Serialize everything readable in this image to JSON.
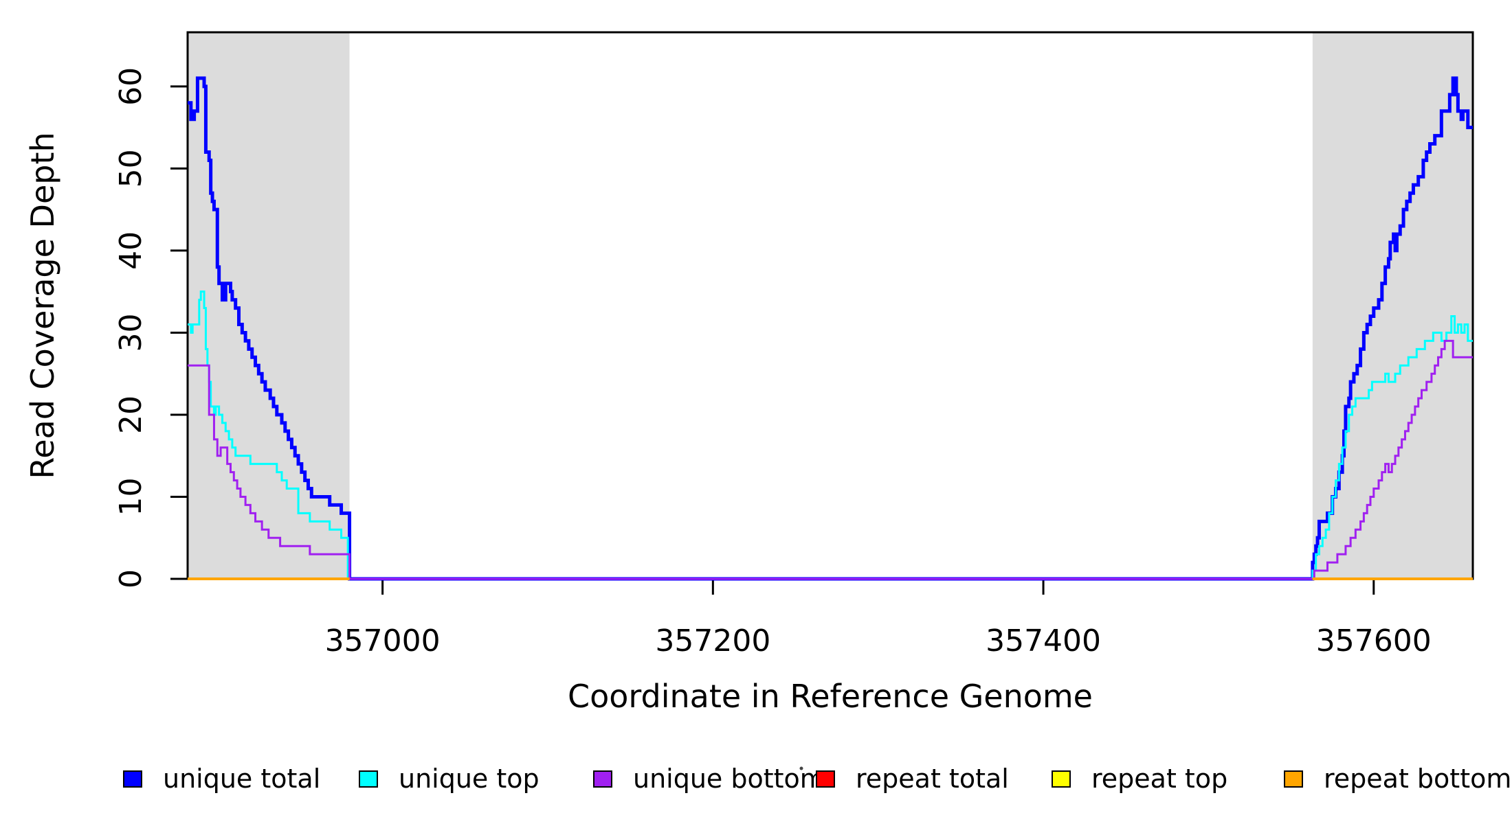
{
  "chart_data": {
    "type": "line",
    "subtype": "step-after-coverage-plot",
    "title": "",
    "xlabel": "Coordinate in Reference Genome",
    "ylabel": "Read Coverage Depth",
    "xlim": [
      356882,
      357660
    ],
    "ylim": [
      0,
      66.6
    ],
    "x_ticks": [
      357000,
      357200,
      357400,
      357600
    ],
    "y_ticks": [
      0,
      10,
      20,
      30,
      40,
      50,
      60
    ],
    "grid": false,
    "legend_position": "bottom",
    "plot_background": "#ffffff",
    "repeat_region_color": "#dcdcdc",
    "repeat_regions": [
      [
        356882,
        356980
      ],
      [
        357563,
        357660
      ]
    ],
    "series": [
      {
        "name": "unique total",
        "color": "#0000ff",
        "width": 5,
        "steps": [
          [
            356882,
            58
          ],
          [
            356884,
            56
          ],
          [
            356886,
            57
          ],
          [
            356888,
            61
          ],
          [
            356892,
            60
          ],
          [
            356893,
            52
          ],
          [
            356895,
            51
          ],
          [
            356896,
            47
          ],
          [
            356897,
            46
          ],
          [
            356898,
            45
          ],
          [
            356900,
            38
          ],
          [
            356901,
            36
          ],
          [
            356903,
            34
          ],
          [
            356905,
            36
          ],
          [
            356908,
            35
          ],
          [
            356909,
            34
          ],
          [
            356911,
            33
          ],
          [
            356913,
            31
          ],
          [
            356915,
            30
          ],
          [
            356917,
            29
          ],
          [
            356919,
            28
          ],
          [
            356921,
            27
          ],
          [
            356923,
            26
          ],
          [
            356925,
            25
          ],
          [
            356927,
            24
          ],
          [
            356929,
            23
          ],
          [
            356932,
            22
          ],
          [
            356934,
            21
          ],
          [
            356936,
            20
          ],
          [
            356939,
            19
          ],
          [
            356941,
            18
          ],
          [
            356943,
            17
          ],
          [
            356945,
            16
          ],
          [
            356947,
            15
          ],
          [
            356949,
            14
          ],
          [
            356951,
            13
          ],
          [
            356953,
            12
          ],
          [
            356955,
            11
          ],
          [
            356957,
            10
          ],
          [
            356968,
            9
          ],
          [
            356975,
            8
          ],
          [
            356980,
            0
          ],
          [
            357563,
            2
          ],
          [
            357564,
            3
          ],
          [
            357565,
            4
          ],
          [
            357566,
            5
          ],
          [
            357567,
            7
          ],
          [
            357572,
            8
          ],
          [
            357575,
            10
          ],
          [
            357577,
            11
          ],
          [
            357579,
            13
          ],
          [
            357581,
            15
          ],
          [
            357582,
            18
          ],
          [
            357583,
            21
          ],
          [
            357585,
            22
          ],
          [
            357586,
            24
          ],
          [
            357588,
            25
          ],
          [
            357590,
            26
          ],
          [
            357592,
            28
          ],
          [
            357594,
            30
          ],
          [
            357596,
            31
          ],
          [
            357598,
            32
          ],
          [
            357600,
            33
          ],
          [
            357603,
            34
          ],
          [
            357605,
            36
          ],
          [
            357607,
            38
          ],
          [
            357609,
            39
          ],
          [
            357610,
            41
          ],
          [
            357612,
            42
          ],
          [
            357613,
            40
          ],
          [
            357614,
            42
          ],
          [
            357616,
            43
          ],
          [
            357618,
            45
          ],
          [
            357620,
            46
          ],
          [
            357622,
            47
          ],
          [
            357624,
            48
          ],
          [
            357627,
            49
          ],
          [
            357630,
            51
          ],
          [
            357632,
            52
          ],
          [
            357634,
            53
          ],
          [
            357637,
            54
          ],
          [
            357641,
            57
          ],
          [
            357646,
            59
          ],
          [
            357648,
            61
          ],
          [
            357650,
            59
          ],
          [
            357651,
            57
          ],
          [
            357653,
            56
          ],
          [
            357654,
            57
          ],
          [
            357657,
            55
          ],
          [
            357660,
            55
          ]
        ]
      },
      {
        "name": "unique top",
        "color": "#00ffff",
        "width": 3,
        "steps": [
          [
            356882,
            31
          ],
          [
            356884,
            30
          ],
          [
            356885,
            31
          ],
          [
            356889,
            34
          ],
          [
            356890,
            35
          ],
          [
            356892,
            33
          ],
          [
            356893,
            28
          ],
          [
            356894,
            26
          ],
          [
            356895,
            24
          ],
          [
            356896,
            21
          ],
          [
            356898,
            20
          ],
          [
            356899,
            21
          ],
          [
            356901,
            20
          ],
          [
            356903,
            19
          ],
          [
            356905,
            18
          ],
          [
            356907,
            17
          ],
          [
            356909,
            16
          ],
          [
            356911,
            15
          ],
          [
            356920,
            14
          ],
          [
            356936,
            13
          ],
          [
            356939,
            12
          ],
          [
            356942,
            11
          ],
          [
            356949,
            8
          ],
          [
            356956,
            7
          ],
          [
            356968,
            6
          ],
          [
            356975,
            5
          ],
          [
            356979,
            0
          ],
          [
            357563,
            1
          ],
          [
            357565,
            3
          ],
          [
            357567,
            4
          ],
          [
            357569,
            5
          ],
          [
            357571,
            6
          ],
          [
            357573,
            8
          ],
          [
            357575,
            10
          ],
          [
            357577,
            12
          ],
          [
            357579,
            14
          ],
          [
            357581,
            16
          ],
          [
            357583,
            18
          ],
          [
            357585,
            20
          ],
          [
            357587,
            21
          ],
          [
            357589,
            22
          ],
          [
            357597,
            23
          ],
          [
            357599,
            24
          ],
          [
            357607,
            25
          ],
          [
            357609,
            24
          ],
          [
            357613,
            25
          ],
          [
            357616,
            26
          ],
          [
            357621,
            27
          ],
          [
            357626,
            28
          ],
          [
            357631,
            29
          ],
          [
            357636,
            30
          ],
          [
            357641,
            29
          ],
          [
            357644,
            30
          ],
          [
            357647,
            32
          ],
          [
            357649,
            30
          ],
          [
            357651,
            31
          ],
          [
            357653,
            30
          ],
          [
            357655,
            31
          ],
          [
            357657,
            29
          ],
          [
            357660,
            29
          ]
        ]
      },
      {
        "name": "unique bottom",
        "color": "#a020f0",
        "width": 3,
        "steps": [
          [
            356882,
            26
          ],
          [
            356895,
            20
          ],
          [
            356898,
            17
          ],
          [
            356900,
            15
          ],
          [
            356902,
            16
          ],
          [
            356906,
            14
          ],
          [
            356908,
            13
          ],
          [
            356910,
            12
          ],
          [
            356912,
            11
          ],
          [
            356914,
            10
          ],
          [
            356917,
            9
          ],
          [
            356920,
            8
          ],
          [
            356923,
            7
          ],
          [
            356927,
            6
          ],
          [
            356931,
            5
          ],
          [
            356938,
            4
          ],
          [
            356956,
            3
          ],
          [
            356980,
            0
          ],
          [
            357564,
            1
          ],
          [
            357572,
            2
          ],
          [
            357578,
            3
          ],
          [
            357583,
            4
          ],
          [
            357586,
            5
          ],
          [
            357589,
            6
          ],
          [
            357592,
            7
          ],
          [
            357594,
            8
          ],
          [
            357596,
            9
          ],
          [
            357598,
            10
          ],
          [
            357600,
            11
          ],
          [
            357603,
            12
          ],
          [
            357605,
            13
          ],
          [
            357607,
            14
          ],
          [
            357609,
            13
          ],
          [
            357611,
            14
          ],
          [
            357613,
            15
          ],
          [
            357615,
            16
          ],
          [
            357617,
            17
          ],
          [
            357619,
            18
          ],
          [
            357621,
            19
          ],
          [
            357623,
            20
          ],
          [
            357625,
            21
          ],
          [
            357627,
            22
          ],
          [
            357629,
            23
          ],
          [
            357632,
            24
          ],
          [
            357635,
            25
          ],
          [
            357637,
            26
          ],
          [
            357639,
            27
          ],
          [
            357641,
            28
          ],
          [
            357643,
            29
          ],
          [
            357647,
            29
          ],
          [
            357648,
            27
          ],
          [
            357660,
            27
          ]
        ]
      },
      {
        "name": "repeat total",
        "color": "#ff0000",
        "width": 3,
        "zero_segments": [
          [
            356882,
            356980
          ],
          [
            357563,
            357660
          ]
        ]
      },
      {
        "name": "repeat top",
        "color": "#ffff00",
        "width": 3,
        "zero_segments": [
          [
            356882,
            356980
          ],
          [
            357563,
            357660
          ]
        ]
      },
      {
        "name": "repeat bottom",
        "color": "#ffa500",
        "width": 4,
        "zero_segments": [
          [
            356882,
            356980
          ],
          [
            357563,
            357660
          ]
        ]
      }
    ]
  },
  "axes": {
    "x_title": "Coordinate in Reference Genome",
    "y_title": "Read Coverage Depth"
  },
  "legend": {
    "items": [
      {
        "label": "unique total",
        "color": "#0000ff"
      },
      {
        "label": "unique top",
        "color": "#00ffff"
      },
      {
        "label": "unique bottom",
        "color": "#a020f0"
      },
      {
        "label": "repeat total",
        "color": "#ff0000"
      },
      {
        "label": "repeat top",
        "color": "#ffff00"
      },
      {
        "label": "repeat bottom",
        "color": "#ffa500"
      }
    ]
  }
}
